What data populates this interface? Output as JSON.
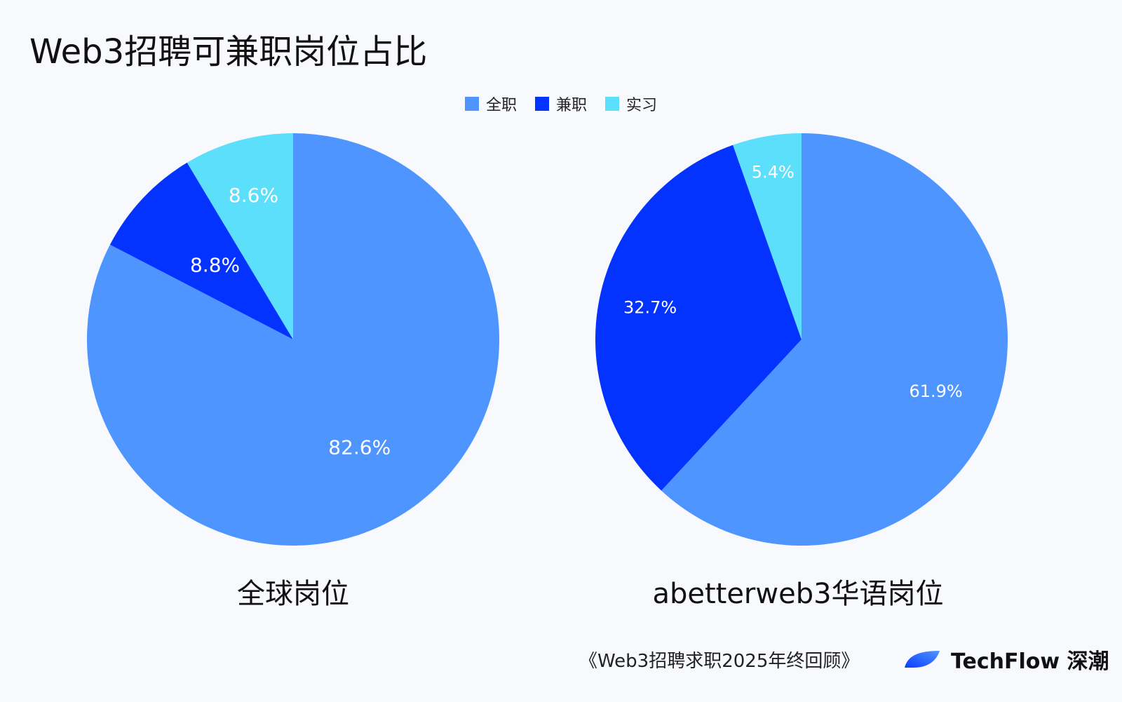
{
  "title": "Web3招聘可兼职岗位占比",
  "legend": [
    {
      "label": "全职",
      "color": "#4f95ff"
    },
    {
      "label": "兼职",
      "color": "#0433ff"
    },
    {
      "label": "实习",
      "color": "#5cdffb"
    }
  ],
  "chart_data": [
    {
      "type": "pie",
      "title": "全球岗位",
      "slices": [
        {
          "name": "全职",
          "value": 82.6,
          "label": "82.6%",
          "color": "#4f95ff"
        },
        {
          "name": "兼职",
          "value": 8.8,
          "label": "8.8%",
          "color": "#0433ff"
        },
        {
          "name": "实习",
          "value": 8.6,
          "label": "8.6%",
          "color": "#5cdffb"
        }
      ]
    },
    {
      "type": "pie",
      "title": "abetterweb3华语岗位",
      "slices": [
        {
          "name": "全职",
          "value": 61.9,
          "label": "61.9%",
          "color": "#4f95ff"
        },
        {
          "name": "兼职",
          "value": 32.7,
          "label": "32.7%",
          "color": "#0433ff"
        },
        {
          "name": "实习",
          "value": 5.4,
          "label": "5.4%",
          "color": "#5cdffb"
        }
      ]
    }
  ],
  "footer": {
    "source": "《Web3招聘求职2025年终回顾》",
    "brand": "TechFlow 深潮",
    "brand_icon": "techflow-logo-icon"
  }
}
